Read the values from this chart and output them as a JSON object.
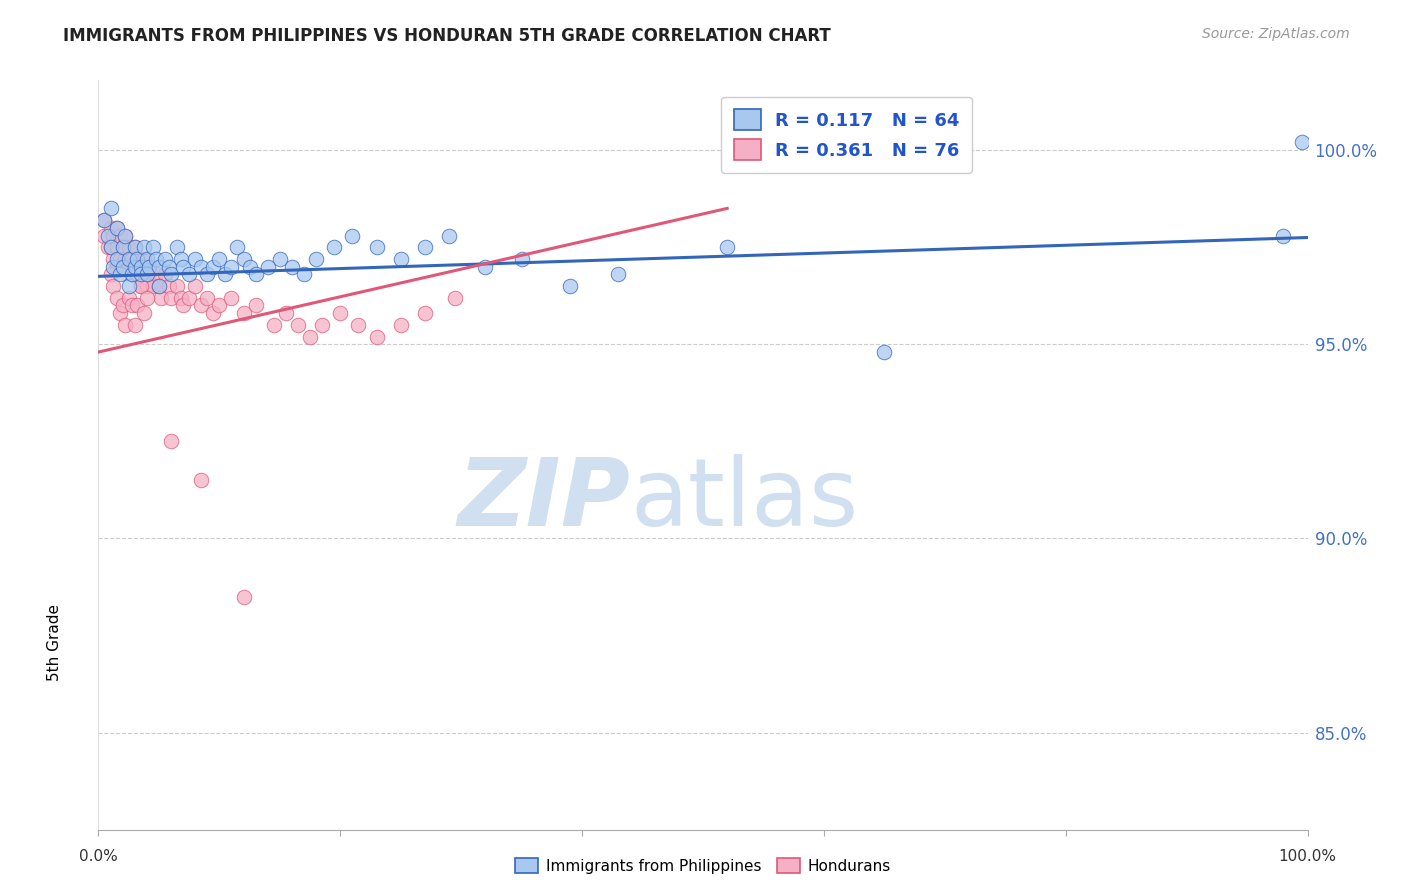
{
  "title": "IMMIGRANTS FROM PHILIPPINES VS HONDURAN 5TH GRADE CORRELATION CHART",
  "source": "Source: ZipAtlas.com",
  "ylabel": "5th Grade",
  "yticks": [
    85.0,
    90.0,
    95.0,
    100.0
  ],
  "ytick_labels": [
    "85.0%",
    "90.0%",
    "95.0%",
    "100.0%"
  ],
  "xlim": [
    0.0,
    1.0
  ],
  "ylim": [
    82.5,
    101.8
  ],
  "legend_r1": "R = 0.117",
  "legend_n1": "N = 64",
  "legend_r2": "R = 0.361",
  "legend_n2": "N = 76",
  "blue_color": "#A8C8F0",
  "pink_color": "#F5B0C5",
  "trendline_blue": "#3366BB",
  "trendline_pink": "#E05878",
  "watermark_zip": "ZIP",
  "watermark_atlas": "atlas",
  "watermark_color": "#D0E0F0",
  "blue_scatter_x": [
    0.005,
    0.008,
    0.01,
    0.01,
    0.012,
    0.015,
    0.015,
    0.018,
    0.02,
    0.02,
    0.022,
    0.025,
    0.025,
    0.028,
    0.03,
    0.03,
    0.032,
    0.035,
    0.035,
    0.038,
    0.04,
    0.04,
    0.042,
    0.045,
    0.048,
    0.05,
    0.05,
    0.055,
    0.058,
    0.06,
    0.065,
    0.068,
    0.07,
    0.075,
    0.08,
    0.085,
    0.09,
    0.095,
    0.1,
    0.105,
    0.11,
    0.115,
    0.12,
    0.125,
    0.13,
    0.14,
    0.15,
    0.16,
    0.17,
    0.18,
    0.195,
    0.21,
    0.23,
    0.25,
    0.27,
    0.29,
    0.32,
    0.35,
    0.39,
    0.43,
    0.52,
    0.65,
    0.98,
    0.995
  ],
  "blue_scatter_y": [
    98.2,
    97.8,
    97.5,
    98.5,
    97.0,
    97.2,
    98.0,
    96.8,
    97.5,
    97.0,
    97.8,
    97.2,
    96.5,
    96.8,
    97.5,
    97.0,
    97.2,
    97.0,
    96.8,
    97.5,
    97.2,
    96.8,
    97.0,
    97.5,
    97.2,
    97.0,
    96.5,
    97.2,
    97.0,
    96.8,
    97.5,
    97.2,
    97.0,
    96.8,
    97.2,
    97.0,
    96.8,
    97.0,
    97.2,
    96.8,
    97.0,
    97.5,
    97.2,
    97.0,
    96.8,
    97.0,
    97.2,
    97.0,
    96.8,
    97.2,
    97.5,
    97.8,
    97.5,
    97.2,
    97.5,
    97.8,
    97.0,
    97.2,
    96.5,
    96.8,
    97.5,
    94.8,
    97.8,
    100.2
  ],
  "pink_scatter_x": [
    0.005,
    0.005,
    0.008,
    0.01,
    0.01,
    0.012,
    0.012,
    0.015,
    0.015,
    0.015,
    0.018,
    0.018,
    0.02,
    0.02,
    0.022,
    0.022,
    0.025,
    0.025,
    0.028,
    0.028,
    0.03,
    0.03,
    0.032,
    0.032,
    0.035,
    0.035,
    0.038,
    0.04,
    0.04,
    0.042,
    0.045,
    0.048,
    0.05,
    0.052,
    0.055,
    0.058,
    0.06,
    0.065,
    0.068,
    0.07,
    0.075,
    0.08,
    0.085,
    0.09,
    0.095,
    0.1,
    0.11,
    0.12,
    0.13,
    0.145,
    0.155,
    0.165,
    0.175,
    0.185,
    0.2,
    0.215,
    0.23,
    0.25,
    0.27,
    0.295,
    0.01,
    0.012,
    0.015,
    0.018,
    0.02,
    0.022,
    0.025,
    0.028,
    0.03,
    0.032,
    0.035,
    0.038,
    0.04,
    0.06,
    0.085,
    0.12
  ],
  "pink_scatter_y": [
    98.2,
    97.8,
    97.5,
    98.0,
    97.5,
    97.8,
    97.2,
    98.0,
    97.5,
    97.0,
    97.8,
    97.2,
    97.5,
    97.0,
    97.8,
    97.2,
    97.5,
    97.0,
    97.2,
    96.8,
    97.5,
    97.0,
    97.2,
    96.8,
    97.0,
    96.5,
    97.2,
    97.0,
    96.5,
    96.8,
    96.5,
    96.8,
    96.5,
    96.2,
    96.8,
    96.5,
    96.2,
    96.5,
    96.2,
    96.0,
    96.2,
    96.5,
    96.0,
    96.2,
    95.8,
    96.0,
    96.2,
    95.8,
    96.0,
    95.5,
    95.8,
    95.5,
    95.2,
    95.5,
    95.8,
    95.5,
    95.2,
    95.5,
    95.8,
    96.2,
    96.8,
    96.5,
    96.2,
    95.8,
    96.0,
    95.5,
    96.2,
    96.0,
    95.5,
    96.0,
    96.5,
    95.8,
    96.2,
    92.5,
    91.5,
    88.5
  ],
  "blue_trendline_x": [
    0.0,
    1.0
  ],
  "blue_trendline_y": [
    96.75,
    97.75
  ],
  "pink_trendline_x": [
    0.0,
    0.52
  ],
  "pink_trendline_y": [
    94.8,
    98.5
  ]
}
